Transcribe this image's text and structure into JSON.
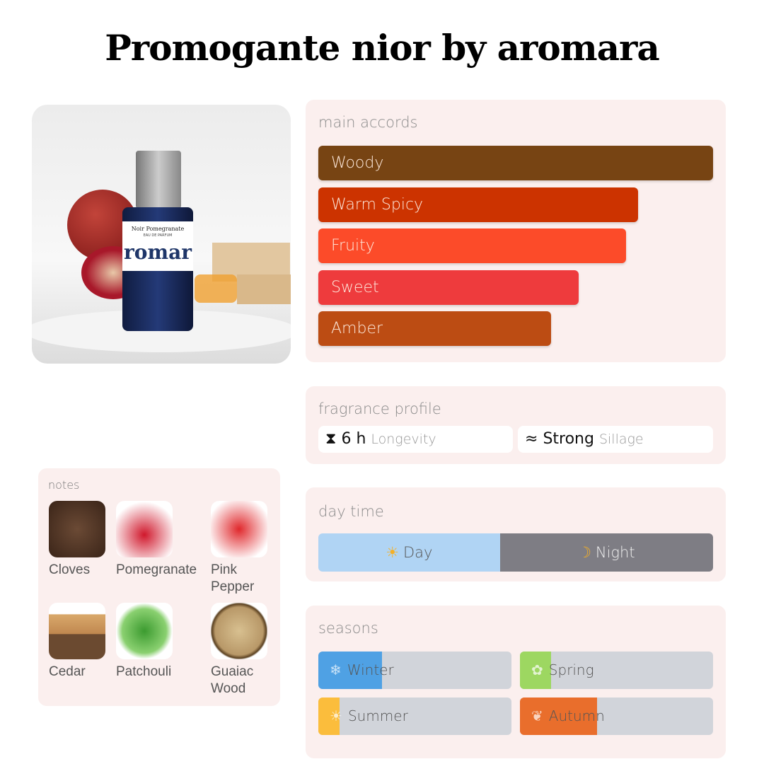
{
  "title": "Promogante nior by aromara",
  "product": {
    "label_name": "Noir Pomegranate",
    "label_type": "EAU DE PARFUM",
    "brand_text": "romar"
  },
  "accords": {
    "title": "main accords",
    "items": [
      {
        "label": "Woody",
        "color": "#774413",
        "percent": 100
      },
      {
        "label": "Warm Spicy",
        "color": "#cc3300",
        "percent": 81
      },
      {
        "label": "Fruity",
        "color": "#fc4b29",
        "percent": 78
      },
      {
        "label": "Sweet",
        "color": "#ee3b3d",
        "percent": 66
      },
      {
        "label": "Amber",
        "color": "#bc4c13",
        "percent": 59
      }
    ]
  },
  "profile": {
    "title": "fragrance profile",
    "longevity": {
      "icon": "hourglass-icon",
      "value": "6 h",
      "label": "Longevity"
    },
    "sillage": {
      "icon": "waves-icon",
      "value": "Strong",
      "label": "Sillage"
    }
  },
  "daytime": {
    "title": "day time",
    "day": {
      "label": "Day",
      "icon": "sun-icon",
      "percent": 46,
      "color": "#b0d4f4"
    },
    "night": {
      "label": "Night",
      "icon": "moon-icon",
      "color": "#7e7d84"
    }
  },
  "seasons": {
    "title": "seasons",
    "items": [
      {
        "label": "Winter",
        "icon": "snowflake-icon",
        "percent": 33,
        "color": "#4fa1e4"
      },
      {
        "label": "Spring",
        "icon": "blossom-icon",
        "percent": 16,
        "color": "#9dd761"
      },
      {
        "label": "Summer",
        "icon": "sun-icon",
        "percent": 11,
        "color": "#fbbd3c"
      },
      {
        "label": "Autumn",
        "icon": "leaf-icon",
        "percent": 40,
        "color": "#e96e2c"
      }
    ]
  },
  "notes": {
    "title": "notes",
    "items": [
      {
        "label": "Cloves"
      },
      {
        "label": "Pomegranate"
      },
      {
        "label": "Pink Pepper"
      },
      {
        "label": "Cedar"
      },
      {
        "label": "Patchouli"
      },
      {
        "label": "Guaiac Wood"
      }
    ]
  }
}
